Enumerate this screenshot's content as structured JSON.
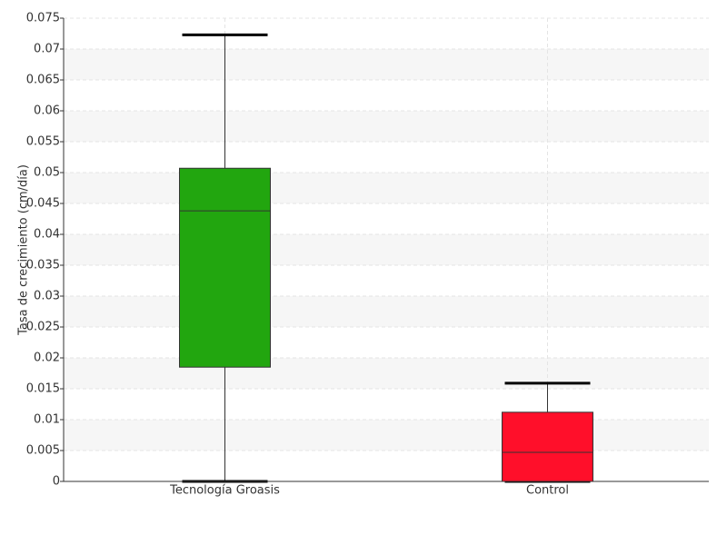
{
  "chart_data": {
    "type": "box",
    "y_label": "Tasa de crecimiento (cm/día)",
    "categories": [
      "Tecnología Groasis",
      "Control"
    ],
    "boxes": [
      {
        "min": 0,
        "q1": 0.0185,
        "median": 0.0438,
        "q3": 0.0507,
        "max": 0.0723,
        "color": "#22a60f"
      },
      {
        "min": 0,
        "q1": 0,
        "median": 0.0047,
        "q3": 0.0112,
        "max": 0.0159,
        "color": "#ff0f2a"
      }
    ],
    "ylim": [
      0,
      0.075
    ],
    "yticks": [
      0,
      0.005,
      0.01,
      0.015,
      0.02,
      0.025,
      0.03,
      0.035,
      0.04,
      0.045,
      0.05,
      0.055,
      0.06,
      0.065,
      0.07,
      0.075
    ],
    "grid": true
  }
}
